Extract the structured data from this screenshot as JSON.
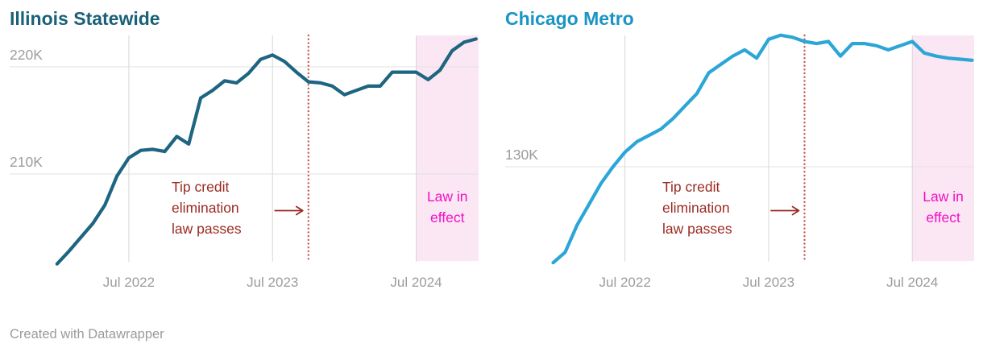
{
  "footer": {
    "credit": "Created with Datawrapper"
  },
  "colors": {
    "background": "#ffffff",
    "axis_text": "#9c9c9c",
    "h_gridline": "#e0e0e0",
    "v_gridline": "#d7d7d7"
  },
  "chart_data": [
    {
      "type": "line",
      "title": "Illinois Statewide",
      "title_color": "#1a6178",
      "line_color": "#1d6580",
      "x": [
        "Jan 2022",
        "Feb 2022",
        "Mar 2022",
        "Apr 2022",
        "May 2022",
        "Jun 2022",
        "Jul 2022",
        "Aug 2022",
        "Sep 2022",
        "Oct 2022",
        "Nov 2022",
        "Dec 2022",
        "Jan 2023",
        "Feb 2023",
        "Mar 2023",
        "Apr 2023",
        "May 2023",
        "Jun 2023",
        "Jul 2023",
        "Aug 2023",
        "Sep 2023",
        "Oct 2023",
        "Nov 2023",
        "Dec 2023",
        "Jan 2024",
        "Feb 2024",
        "Mar 2024",
        "Apr 2024",
        "May 2024",
        "Jun 2024",
        "Jul 2024",
        "Aug 2024",
        "Sep 2024",
        "Oct 2024",
        "Nov 2024",
        "Dec 2024"
      ],
      "values": [
        201.6,
        202.8,
        204.1,
        205.4,
        207.1,
        209.8,
        211.5,
        212.2,
        212.3,
        212.1,
        213.5,
        212.8,
        217.1,
        217.8,
        218.7,
        218.5,
        219.4,
        220.7,
        221.1,
        220.5,
        219.5,
        218.6,
        218.5,
        218.2,
        217.4,
        217.8,
        218.2,
        218.2,
        219.5,
        219.5,
        219.5,
        218.8,
        219.7,
        221.5,
        222.3,
        222.6
      ],
      "value_unit": "K",
      "ylim": [
        201.58,
        222.93
      ],
      "y_gridlines": [
        {
          "value": 220,
          "label": "220K"
        },
        {
          "value": 210,
          "label": "210K"
        }
      ],
      "x_ticks": [
        {
          "index": 6,
          "label": "Jul 2022"
        },
        {
          "index": 18,
          "label": "Jul 2023"
        },
        {
          "index": 30,
          "label": "Jul 2024"
        }
      ],
      "grid": true,
      "annotations": {
        "law_passes": {
          "lines": [
            "Tip credit",
            "elimination",
            "law passes"
          ],
          "color": "#9a2a21",
          "marker_index": 21,
          "marker_line_color": "#c75b52",
          "marker_line_style": "dotted"
        },
        "law_in_effect": {
          "lines": [
            "Law in",
            "effect"
          ],
          "color": "#f110c6",
          "shade_color": "#fbe7f3",
          "start_index": 30
        }
      }
    },
    {
      "type": "line",
      "title": "Chicago Metro",
      "title_color": "#1a94c6",
      "line_color": "#2ba6d7",
      "x": [
        "Jan 2022",
        "Feb 2022",
        "Mar 2022",
        "Apr 2022",
        "May 2022",
        "Jun 2022",
        "Jul 2022",
        "Aug 2022",
        "Sep 2022",
        "Oct 2022",
        "Nov 2022",
        "Dec 2022",
        "Jan 2023",
        "Feb 2023",
        "Mar 2023",
        "Apr 2023",
        "May 2023",
        "Jun 2023",
        "Jul 2023",
        "Aug 2023",
        "Sep 2023",
        "Oct 2023",
        "Nov 2023",
        "Dec 2023",
        "Jan 2024",
        "Feb 2024",
        "Mar 2024",
        "Apr 2024",
        "May 2024",
        "Jun 2024",
        "Jul 2024",
        "Aug 2024",
        "Sep 2024",
        "Oct 2024",
        "Nov 2024",
        "Dec 2024"
      ],
      "values": [
        125.4,
        125.9,
        127.2,
        128.2,
        129.2,
        130.0,
        130.7,
        131.2,
        131.5,
        131.8,
        132.3,
        132.9,
        133.5,
        134.5,
        134.9,
        135.3,
        135.6,
        135.2,
        136.1,
        136.3,
        136.2,
        136.0,
        135.9,
        136.0,
        135.3,
        135.9,
        135.9,
        135.8,
        135.6,
        135.8,
        136.0,
        135.45,
        135.3,
        135.2,
        135.15,
        135.1
      ],
      "value_unit": "K",
      "ylim": [
        125.33,
        136.29
      ],
      "y_gridlines": [
        {
          "value": 130,
          "label": "130K"
        }
      ],
      "x_ticks": [
        {
          "index": 6,
          "label": "Jul 2022"
        },
        {
          "index": 18,
          "label": "Jul 2023"
        },
        {
          "index": 30,
          "label": "Jul 2024"
        }
      ],
      "grid": true,
      "annotations": {
        "law_passes": {
          "lines": [
            "Tip credit",
            "elimination",
            "law passes"
          ],
          "color": "#9a2a21",
          "marker_index": 21,
          "marker_line_color": "#c75b52",
          "marker_line_style": "dotted"
        },
        "law_in_effect": {
          "lines": [
            "Law in",
            "effect"
          ],
          "color": "#f110c6",
          "shade_color": "#fbe7f3",
          "start_index": 30
        }
      }
    }
  ]
}
